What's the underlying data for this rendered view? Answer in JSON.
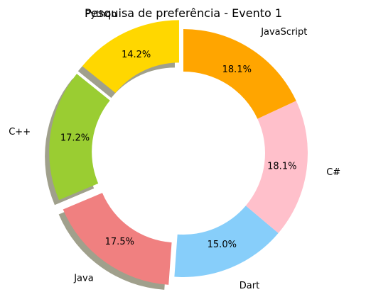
{
  "chart_data": {
    "type": "pie",
    "title": "Pesquisa de preferência - Evento 1",
    "start_angle": 90,
    "donut": true,
    "categories": [
      "Python",
      "C++",
      "Java",
      "Dart",
      "C#",
      "JavaScript"
    ],
    "values": [
      14.2,
      17.2,
      17.5,
      15.0,
      18.1,
      18.1
    ],
    "value_labels": [
      "14.2%",
      "17.2%",
      "17.5%",
      "15.0%",
      "18.1%",
      "18.1%"
    ],
    "colors": [
      "#ffd700",
      "#9acd32",
      "#f08080",
      "#87cefa",
      "#ffc0cb",
      "#ffa500"
    ],
    "exploded": [
      "Python",
      "C++",
      "Java"
    ],
    "shadow": true
  }
}
